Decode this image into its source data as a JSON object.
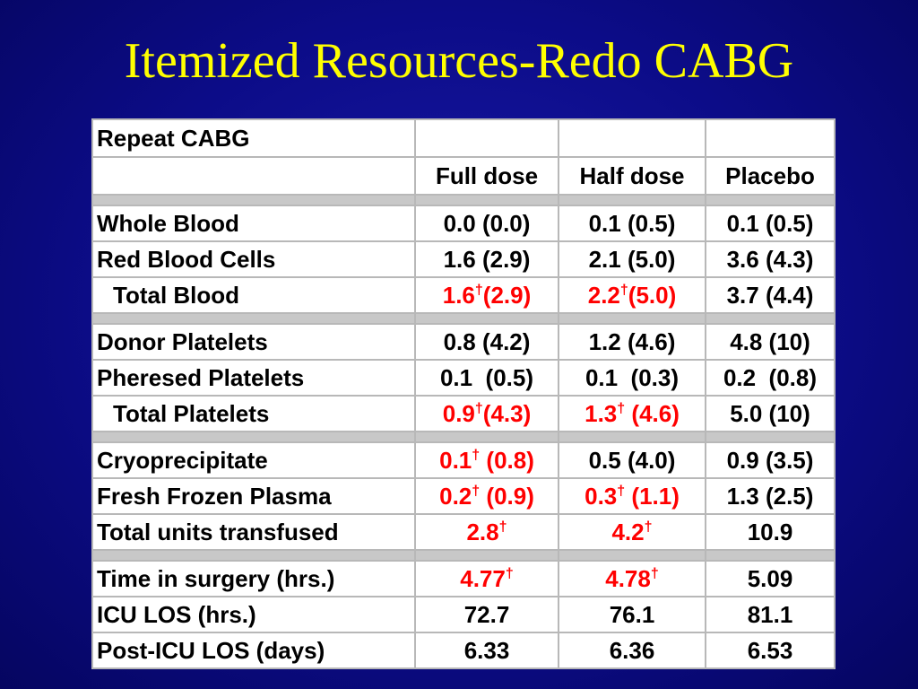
{
  "slide": {
    "title": "Itemized Resources-Redo CABG"
  },
  "table": {
    "header_label": "Repeat CABG",
    "columns": [
      "Full dose",
      "Half dose",
      "Placebo"
    ],
    "dagger": "†",
    "highlight_color": "#ff0000",
    "rows": [
      {
        "label": "Whole Blood",
        "cells": [
          {
            "text": "0.0 (0.0)"
          },
          {
            "text": "0.1 (0.5)"
          },
          {
            "text": "0.1 (0.5)"
          }
        ]
      },
      {
        "label": "Red Blood Cells",
        "cells": [
          {
            "text": "1.6 (2.9)"
          },
          {
            "text": "2.1 (5.0)"
          },
          {
            "text": "3.6 (4.3)"
          }
        ]
      },
      {
        "label": "Total Blood",
        "cells": [
          {
            "pre": "1.6",
            "post": "(2.9)"
          },
          {
            "pre": "2.2",
            "post": "(5.0)"
          },
          {
            "text": "3.7 (4.4)"
          }
        ]
      },
      {
        "label": "Donor Platelets",
        "cells": [
          {
            "text": "0.8 (4.2)"
          },
          {
            "text": "1.2 (4.6)"
          },
          {
            "text": "4.8 (10)"
          }
        ]
      },
      {
        "label": "Pheresed Platelets",
        "cells": [
          {
            "text": "0.1  (0.5)"
          },
          {
            "text": "0.1  (0.3)"
          },
          {
            "text": "0.2  (0.8)"
          }
        ]
      },
      {
        "label": "Total Platelets",
        "cells": [
          {
            "pre": "0.9",
            "post": "(4.3)"
          },
          {
            "pre": "1.3",
            "post": " (4.6)"
          },
          {
            "text": "5.0 (10)"
          }
        ]
      },
      {
        "label": "Cryoprecipitate",
        "cells": [
          {
            "pre": "0.1",
            "post": " (0.8)"
          },
          {
            "text": "0.5 (4.0)"
          },
          {
            "text": "0.9 (3.5)"
          }
        ]
      },
      {
        "label": "Fresh Frozen Plasma",
        "cells": [
          {
            "pre": "0.2",
            "post": " (0.9)"
          },
          {
            "pre": "0.3",
            "post": " (1.1)"
          },
          {
            "text": "1.3 (2.5)"
          }
        ]
      },
      {
        "label": "Total units transfused",
        "cells": [
          {
            "pre": "2.8",
            "post": ""
          },
          {
            "pre": "4.2",
            "post": ""
          },
          {
            "text": "10.9"
          }
        ]
      },
      {
        "label": "Time in surgery (hrs.)",
        "cells": [
          {
            "pre": "4.77",
            "post": ""
          },
          {
            "pre": "4.78",
            "post": ""
          },
          {
            "text": "5.09"
          }
        ]
      },
      {
        "label": "ICU LOS (hrs.)",
        "cells": [
          {
            "text": "72.7"
          },
          {
            "text": "76.1"
          },
          {
            "text": "81.1"
          }
        ]
      },
      {
        "label": "Post-ICU LOS (days)",
        "cells": [
          {
            "text": "6.33"
          },
          {
            "text": "6.36"
          },
          {
            "text": "6.53"
          }
        ]
      }
    ]
  }
}
